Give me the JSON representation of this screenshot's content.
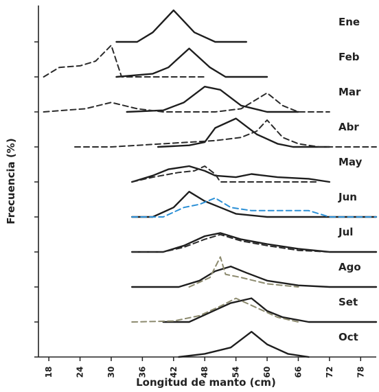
{
  "chart_data": {
    "type": "line",
    "xlabel": "Longitud de manto (cm)",
    "ylabel": "Frecuencia (%)",
    "xlim": [
      16,
      81
    ],
    "xticks": [
      18,
      24,
      30,
      36,
      42,
      48,
      54,
      60,
      66,
      72,
      78
    ],
    "grid": false,
    "legend": "none",
    "colors": {
      "solid": "#1e1e1e",
      "dashed": "#2a2a2a",
      "blue": "#2a8fd6",
      "olive": "#8c8a6e"
    },
    "panels": [
      {
        "month": "Ene",
        "series": [
          {
            "style": "solid",
            "color": "solid",
            "points": [
              [
                31,
                0
              ],
              [
                35,
                0
              ],
              [
                38,
                0.3
              ],
              [
                42,
                1.0
              ],
              [
                46,
                0.3
              ],
              [
                50,
                0
              ],
              [
                56,
                0
              ]
            ]
          }
        ]
      },
      {
        "month": "Feb",
        "series": [
          {
            "style": "solid",
            "color": "solid",
            "points": [
              [
                31,
                0
              ],
              [
                38,
                0.1
              ],
              [
                41,
                0.3
              ],
              [
                45,
                0.9
              ],
              [
                49,
                0.3
              ],
              [
                52,
                0
              ],
              [
                60,
                0
              ]
            ]
          },
          {
            "style": "dashed",
            "color": "dashed",
            "points": [
              [
                17,
                0
              ],
              [
                20,
                0.3
              ],
              [
                24,
                0.35
              ],
              [
                27,
                0.5
              ],
              [
                30,
                1.0
              ],
              [
                32,
                0
              ],
              [
                40,
                0
              ],
              [
                48,
                0
              ]
            ]
          }
        ]
      },
      {
        "month": "Mar",
        "series": [
          {
            "style": "solid",
            "color": "solid",
            "points": [
              [
                33,
                0
              ],
              [
                40,
                0.05
              ],
              [
                44,
                0.3
              ],
              [
                48,
                0.8
              ],
              [
                51,
                0.7
              ],
              [
                55,
                0.2
              ],
              [
                60,
                0
              ],
              [
                66,
                0
              ]
            ]
          },
          {
            "style": "dashed",
            "color": "dashed",
            "points": [
              [
                17,
                0
              ],
              [
                25,
                0.1
              ],
              [
                30,
                0.3
              ],
              [
                35,
                0.1
              ],
              [
                40,
                0
              ],
              [
                50,
                0
              ],
              [
                55,
                0.1
              ],
              [
                60,
                0.6
              ],
              [
                63,
                0.2
              ],
              [
                66,
                0
              ],
              [
                72,
                0
              ]
            ]
          }
        ]
      },
      {
        "month": "Abr",
        "series": [
          {
            "style": "solid",
            "color": "solid",
            "points": [
              [
                39,
                0
              ],
              [
                45,
                0.05
              ],
              [
                48,
                0.15
              ],
              [
                50,
                0.6
              ],
              [
                54,
                0.9
              ],
              [
                58,
                0.4
              ],
              [
                62,
                0.1
              ],
              [
                65,
                0
              ],
              [
                72,
                0
              ]
            ]
          },
          {
            "style": "dashed",
            "color": "dashed",
            "points": [
              [
                23,
                0
              ],
              [
                30,
                0
              ],
              [
                40,
                0.1
              ],
              [
                50,
                0.2
              ],
              [
                55,
                0.3
              ],
              [
                58,
                0.5
              ],
              [
                60,
                0.85
              ],
              [
                63,
                0.3
              ],
              [
                66,
                0.1
              ],
              [
                70,
                0
              ],
              [
                81,
                0
              ]
            ]
          }
        ]
      },
      {
        "month": "May",
        "series": [
          {
            "style": "solid",
            "color": "solid",
            "points": [
              [
                34,
                0
              ],
              [
                38,
                0.2
              ],
              [
                41,
                0.4
              ],
              [
                45,
                0.5
              ],
              [
                48,
                0.35
              ],
              [
                50,
                0.2
              ],
              [
                54,
                0.15
              ],
              [
                57,
                0.25
              ],
              [
                62,
                0.15
              ],
              [
                68,
                0.1
              ],
              [
                72,
                0
              ]
            ]
          },
          {
            "style": "dashed",
            "color": "dashed",
            "points": [
              [
                34,
                0
              ],
              [
                38,
                0.15
              ],
              [
                43,
                0.3
              ],
              [
                46,
                0.35
              ],
              [
                48,
                0.5
              ],
              [
                50,
                0.25
              ],
              [
                51,
                0
              ],
              [
                60,
                0
              ],
              [
                70,
                0
              ]
            ]
          }
        ]
      },
      {
        "month": "Jun",
        "series": [
          {
            "style": "solid",
            "color": "solid",
            "points": [
              [
                34,
                0
              ],
              [
                38,
                0
              ],
              [
                42,
                0.3
              ],
              [
                45,
                0.8
              ],
              [
                48,
                0.5
              ],
              [
                51,
                0.3
              ],
              [
                54,
                0.1
              ],
              [
                60,
                0
              ],
              [
                70,
                0
              ],
              [
                81,
                0
              ]
            ]
          },
          {
            "style": "dashed",
            "color": "blue",
            "points": [
              [
                34,
                0
              ],
              [
                40,
                0
              ],
              [
                44,
                0.3
              ],
              [
                47,
                0.4
              ],
              [
                50,
                0.6
              ],
              [
                53,
                0.3
              ],
              [
                57,
                0.2
              ],
              [
                63,
                0.2
              ],
              [
                68,
                0.2
              ],
              [
                72,
                0
              ],
              [
                81,
                0
              ]
            ]
          }
        ]
      },
      {
        "month": "Jul",
        "series": [
          {
            "style": "solid",
            "color": "solid",
            "points": [
              [
                34,
                0
              ],
              [
                40,
                0
              ],
              [
                44,
                0.2
              ],
              [
                48,
                0.5
              ],
              [
                51,
                0.6
              ],
              [
                55,
                0.4
              ],
              [
                60,
                0.25
              ],
              [
                66,
                0.1
              ],
              [
                72,
                0
              ],
              [
                81,
                0
              ]
            ]
          },
          {
            "style": "dashed",
            "color": "dashed",
            "points": [
              [
                34,
                0
              ],
              [
                40,
                0
              ],
              [
                44,
                0.15
              ],
              [
                48,
                0.4
              ],
              [
                51,
                0.55
              ],
              [
                55,
                0.35
              ],
              [
                60,
                0.2
              ],
              [
                66,
                0.05
              ],
              [
                72,
                0
              ]
            ]
          }
        ]
      },
      {
        "month": "Ago",
        "series": [
          {
            "style": "solid",
            "color": "solid",
            "points": [
              [
                34,
                0
              ],
              [
                43,
                0
              ],
              [
                47,
                0.2
              ],
              [
                50,
                0.5
              ],
              [
                53,
                0.65
              ],
              [
                56,
                0.45
              ],
              [
                60,
                0.2
              ],
              [
                66,
                0.05
              ],
              [
                72,
                0
              ],
              [
                81,
                0
              ]
            ]
          },
          {
            "style": "dashed",
            "color": "olive",
            "points": [
              [
                45,
                0
              ],
              [
                49,
                0.3
              ],
              [
                51,
                0.95
              ],
              [
                52,
                0.4
              ],
              [
                55,
                0.3
              ],
              [
                60,
                0.1
              ],
              [
                66,
                0
              ]
            ]
          }
        ]
      },
      {
        "month": "Set",
        "series": [
          {
            "style": "solid",
            "color": "solid",
            "points": [
              [
                40,
                0
              ],
              [
                45,
                0
              ],
              [
                49,
                0.3
              ],
              [
                53,
                0.6
              ],
              [
                57,
                0.75
              ],
              [
                60,
                0.35
              ],
              [
                63,
                0.15
              ],
              [
                68,
                0
              ],
              [
                81,
                0
              ]
            ]
          },
          {
            "style": "dashed",
            "color": "olive",
            "points": [
              [
                34,
                0
              ],
              [
                42,
                0.03
              ],
              [
                47,
                0.2
              ],
              [
                51,
                0.5
              ],
              [
                54,
                0.75
              ],
              [
                58,
                0.45
              ],
              [
                62,
                0.15
              ],
              [
                66,
                0
              ]
            ]
          }
        ]
      },
      {
        "month": "Oct",
        "series": [
          {
            "style": "solid",
            "color": "solid",
            "points": [
              [
                43,
                0
              ],
              [
                48,
                0.1
              ],
              [
                53,
                0.3
              ],
              [
                57,
                0.8
              ],
              [
                60,
                0.4
              ],
              [
                64,
                0.1
              ],
              [
                68,
                0
              ]
            ]
          }
        ]
      }
    ]
  }
}
